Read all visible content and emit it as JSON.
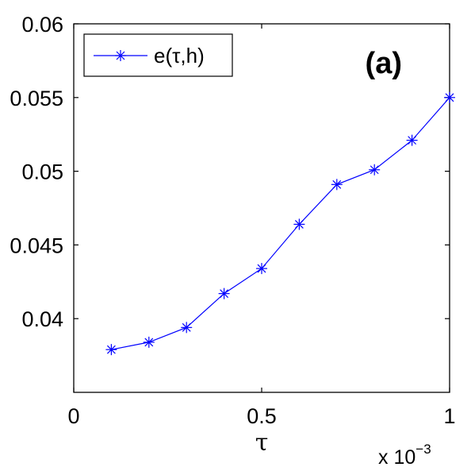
{
  "chart_data": {
    "type": "line",
    "x": [
      0.1,
      0.2,
      0.3,
      0.4,
      0.5,
      0.6,
      0.7,
      0.8,
      0.9,
      1.0
    ],
    "x_multiplier": "x 10",
    "x_multiplier_exponent": "−3",
    "series": [
      {
        "name": "e(τ,h)",
        "color": "#0000ff",
        "marker": "asterisk",
        "values": [
          0.0379,
          0.0384,
          0.0394,
          0.0417,
          0.0434,
          0.0464,
          0.0491,
          0.0501,
          0.0521,
          0.055
        ]
      }
    ],
    "xlabel": "τ",
    "ylabel": "",
    "xlim": [
      0,
      1
    ],
    "ylim": [
      0.035,
      0.06
    ],
    "xticks": [
      0,
      0.5,
      1
    ],
    "xtick_labels": [
      "0",
      "0.5",
      "1"
    ],
    "yticks": [
      0.04,
      0.045,
      0.05,
      0.055,
      0.06
    ],
    "ytick_labels": [
      "0.04",
      "0.045",
      "0.05",
      "0.055",
      "0.06"
    ],
    "panel_label": "(a)",
    "legend_position": "top-left",
    "grid": false
  }
}
